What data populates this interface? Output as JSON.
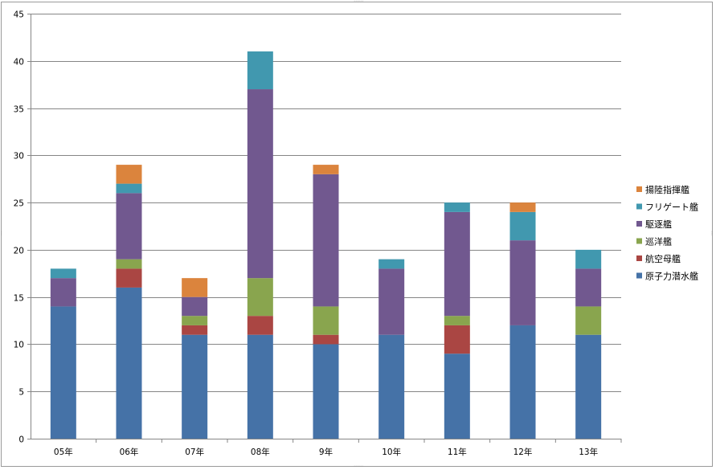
{
  "chart_data": {
    "type": "bar",
    "stacked": true,
    "title": "",
    "xlabel": "",
    "ylabel": "",
    "categories": [
      "05年",
      "06年",
      "07年",
      "08年",
      "9年",
      "10年",
      "11年",
      "12年",
      "13年"
    ],
    "ylim": [
      0,
      45
    ],
    "yticks": [
      0,
      5,
      10,
      15,
      20,
      25,
      30,
      35,
      40,
      45
    ],
    "grid": true,
    "legend_position": "right",
    "series": [
      {
        "name": "原子力潜水艦",
        "color": "#4572A7",
        "values": [
          14,
          16,
          11,
          11,
          10,
          11,
          9,
          12,
          11
        ]
      },
      {
        "name": "航空母艦",
        "color": "#AA4643",
        "values": [
          0,
          2,
          1,
          2,
          1,
          0,
          3,
          0,
          0
        ]
      },
      {
        "name": "巡洋艦",
        "color": "#89A54E",
        "values": [
          0,
          1,
          1,
          4,
          3,
          0,
          1,
          0,
          3
        ]
      },
      {
        "name": "駆逐艦",
        "color": "#71588F",
        "values": [
          3,
          7,
          2,
          20,
          14,
          7,
          11,
          9,
          4
        ]
      },
      {
        "name": "フリゲート艦",
        "color": "#4198AF",
        "values": [
          1,
          1,
          0,
          4,
          0,
          1,
          1,
          3,
          2
        ]
      },
      {
        "name": "揚陸指揮艦",
        "color": "#DB843D",
        "values": [
          0,
          2,
          2,
          0,
          1,
          0,
          0,
          1,
          0
        ]
      }
    ]
  }
}
